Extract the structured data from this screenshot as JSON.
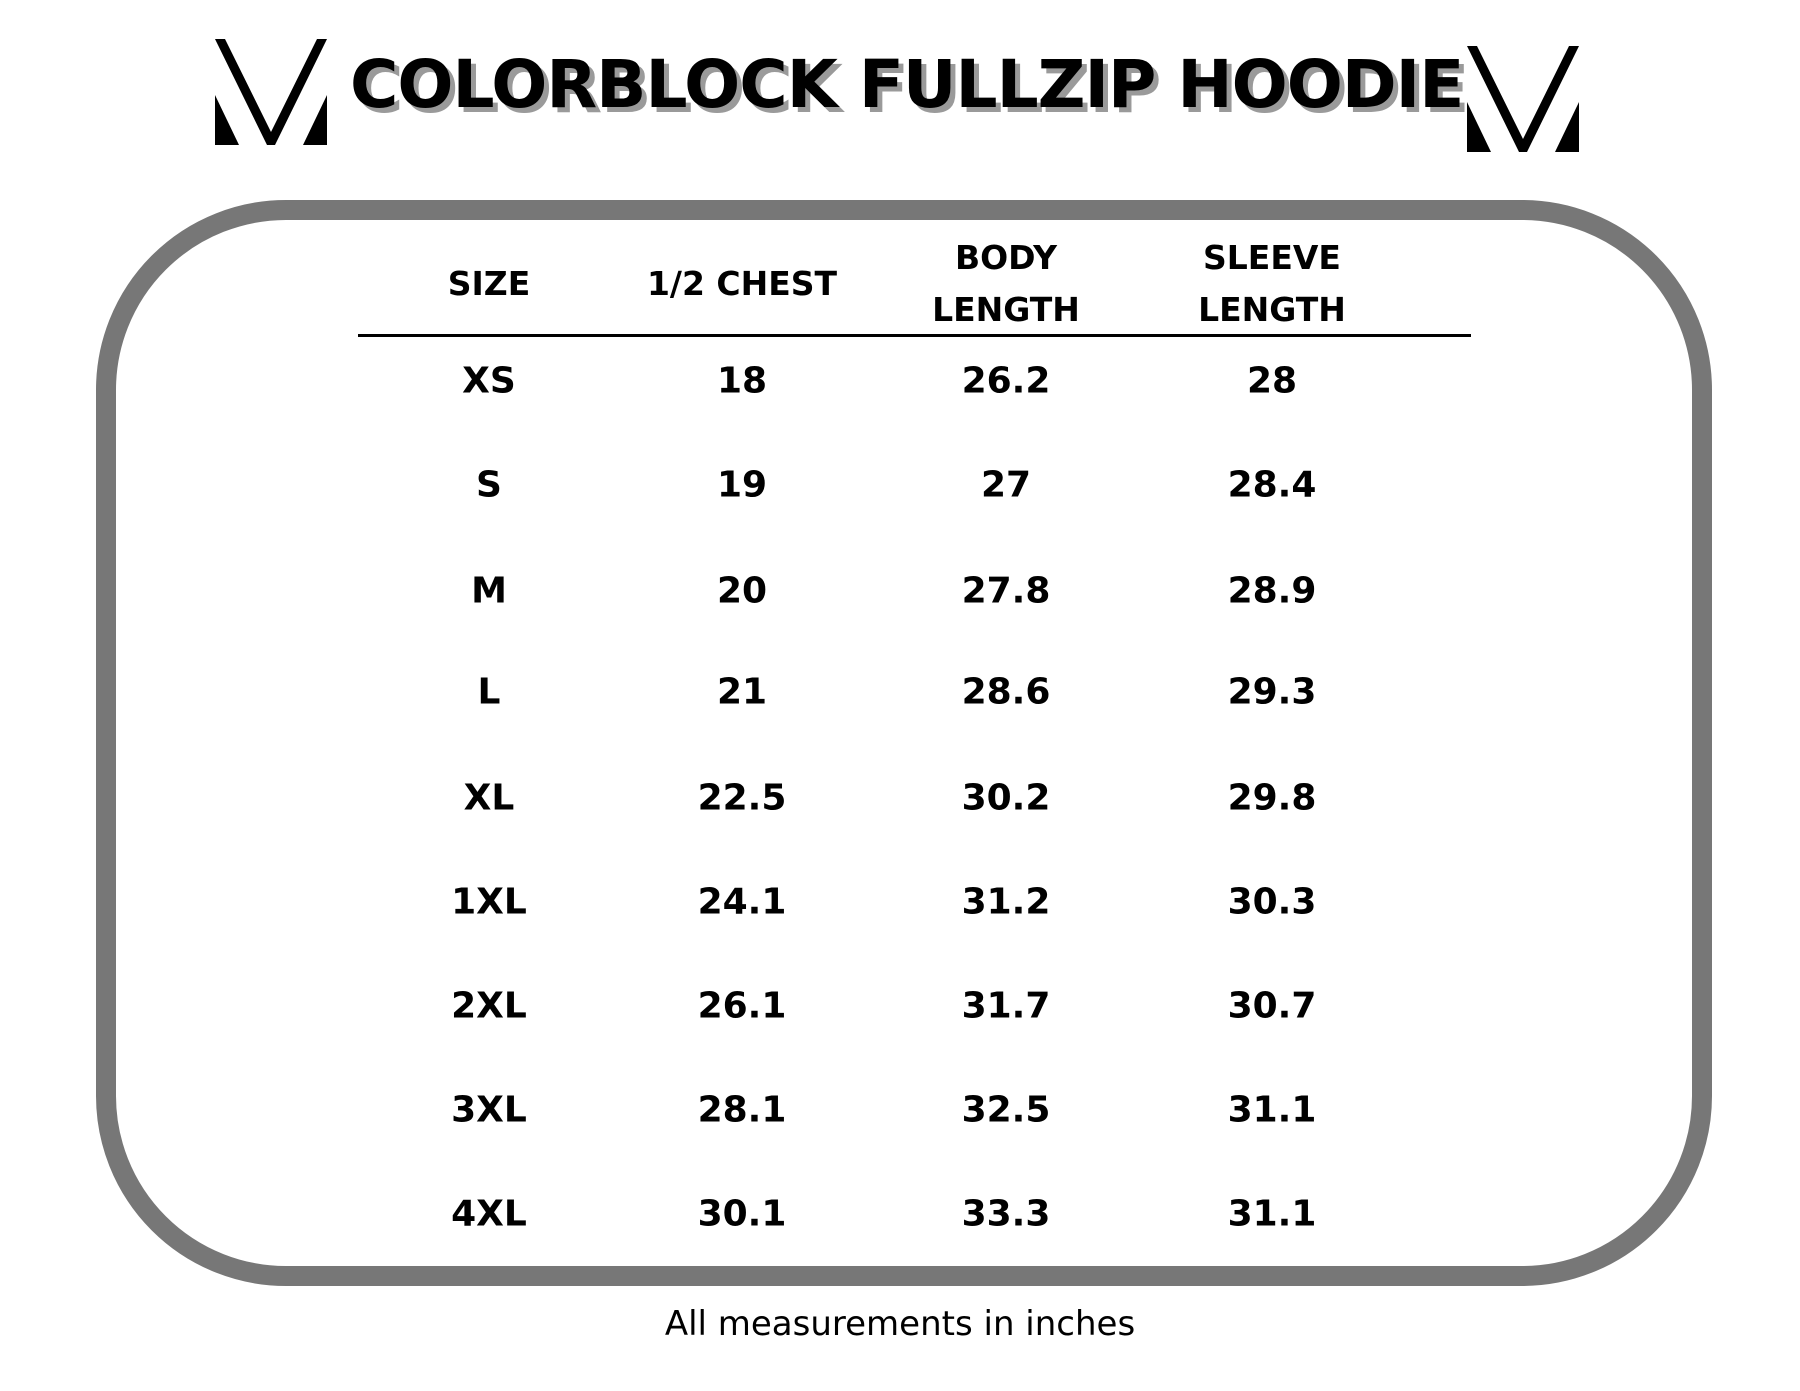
{
  "title": "COLORBLOCK FULLZIP HOODIE",
  "logo_icon": "brand-v-mark",
  "table": {
    "headers": [
      "SIZE",
      "1/2 CHEST",
      "BODY\nLENGTH",
      "SLEEVE\nLENGTH"
    ],
    "header_lines": [
      [
        "SIZE"
      ],
      [
        "1/2 CHEST"
      ],
      [
        "BODY",
        "LENGTH"
      ],
      [
        "SLEEVE",
        "LENGTH"
      ]
    ],
    "rows": [
      [
        "XS",
        "18",
        "26.2",
        "28"
      ],
      [
        "S",
        "19",
        "27",
        "28.4"
      ],
      [
        "M",
        "20",
        "27.8",
        "28.9"
      ],
      [
        "L",
        "21",
        "28.6",
        "29.3"
      ],
      [
        "XL",
        "22.5",
        "30.2",
        "29.8"
      ],
      [
        "1XL",
        "24.1",
        "31.2",
        "30.3"
      ],
      [
        "2XL",
        "26.1",
        "31.7",
        "30.7"
      ],
      [
        "3XL",
        "28.1",
        "32.5",
        "31.1"
      ],
      [
        "4XL",
        "30.1",
        "33.3",
        "31.1"
      ]
    ]
  },
  "footer": "All measurements in inches",
  "colors": {
    "frame": "#777777",
    "text": "#000000",
    "title_shadow": "#9a9a9a"
  }
}
